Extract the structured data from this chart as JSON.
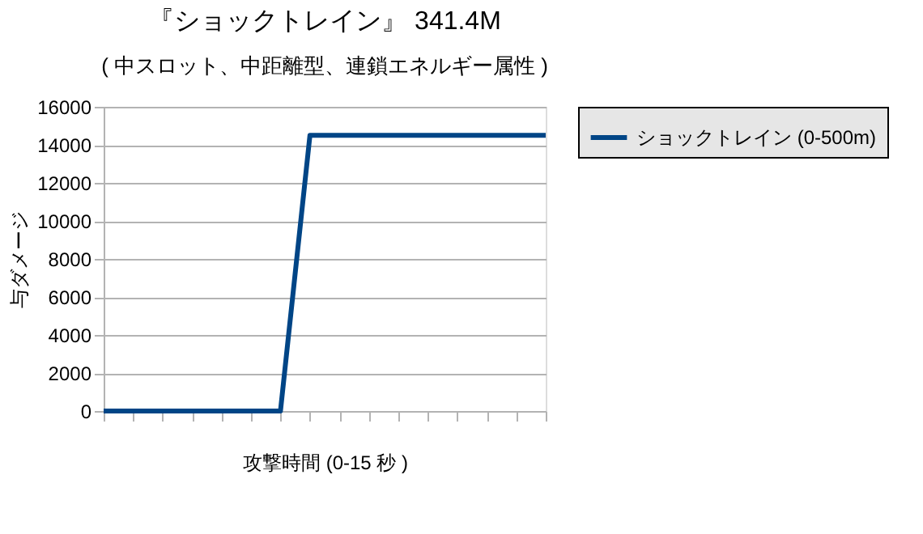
{
  "chart_data": {
    "type": "line",
    "title": "『ショックトレイン』 341.4M",
    "subtitle": "( 中スロット、中距離型、連鎖エネルギー属性 )",
    "xlabel": "攻撃時間 (0-15 秒 )",
    "ylabel": "与ダメージ",
    "categories": [
      null,
      null,
      null,
      null,
      null,
      null,
      null,
      null,
      null,
      null,
      null,
      null,
      null,
      null,
      null,
      null
    ],
    "series": [
      {
        "name": "ショックトレイン (0-500m)",
        "color": "#004586",
        "values": [
          0,
          0,
          0,
          0,
          0,
          0,
          0,
          14500,
          14500,
          14500,
          14500,
          14500,
          14500,
          14500,
          14500,
          14500
        ]
      }
    ],
    "ylim": [
      0,
      16000
    ],
    "yticks": [
      0,
      2000,
      4000,
      6000,
      8000,
      10000,
      12000,
      14000,
      16000
    ],
    "grid": "y",
    "legend": "right",
    "tick_labels": "y",
    "marker": "none",
    "line_style": "solid"
  }
}
